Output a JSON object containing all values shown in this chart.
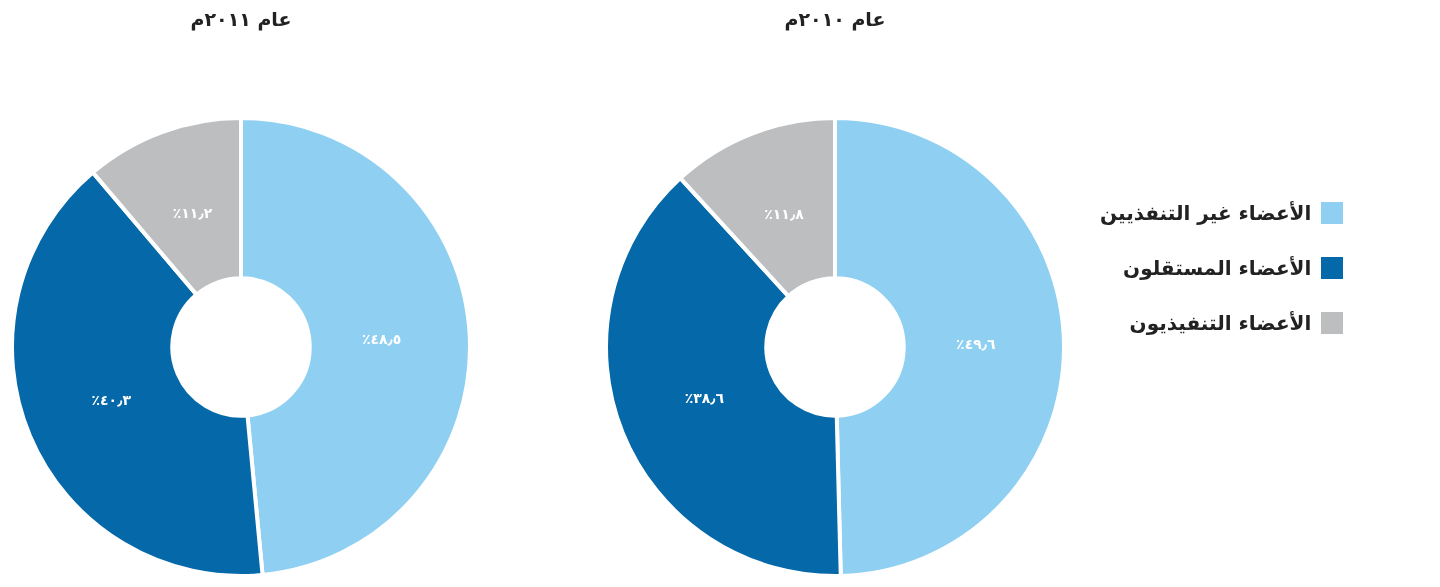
{
  "chart_data": [
    {
      "type": "donut",
      "title": "عام ٢٠١٠م",
      "categories": [
        "الأعضاء غير التنفذيين",
        "الأعضاء المستقلون",
        "الأعضاء التنفيذيون"
      ],
      "values": [
        49.6,
        38.6,
        11.8
      ],
      "colors": [
        "#8fd0f2",
        "#0568a8",
        "#bcbec0"
      ],
      "value_labels": [
        "٪٤٩٫٦",
        "٪٣٨٫٦",
        "٪١١٫٨"
      ],
      "legend": "right"
    },
    {
      "type": "donut",
      "title": "عام ٢٠١١م",
      "categories": [
        null,
        null,
        null
      ],
      "values": [
        48.5,
        40.3,
        11.2
      ],
      "colors": [
        "#8fd0f2",
        "#0568a8",
        "#bcbec0"
      ],
      "value_labels": [
        "٪٤٨٫٥",
        "٪٤٠٫٣",
        "٪١١٫٢"
      ]
    }
  ]
}
